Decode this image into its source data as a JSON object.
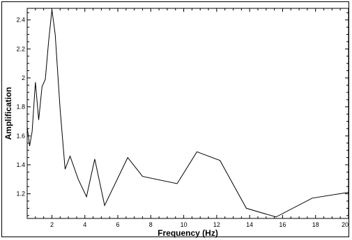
{
  "chart_data": {
    "type": "line",
    "xlabel": "Frequency (Hz)",
    "ylabel": "Amplification",
    "xlim": [
      0.5,
      20
    ],
    "ylim": [
      1.03,
      2.48
    ],
    "xticks": [
      2,
      4,
      6,
      8,
      10,
      12,
      14,
      16,
      18,
      20
    ],
    "xtick_labels": [
      "2",
      "4",
      "6",
      "8",
      "10",
      "12",
      "14",
      "16",
      "18",
      "20"
    ],
    "yticks": [
      1.2,
      1.4,
      1.6,
      1.8,
      2.0,
      2.2,
      2.4
    ],
    "ytick_labels": [
      "1.2",
      "1.4",
      "1.6",
      "1.8",
      "2",
      "2.2",
      "2.4"
    ],
    "grid": false,
    "legend": "none",
    "line_color": "#000000",
    "series": [
      {
        "x": [
          0.5,
          0.65,
          0.8,
          1.0,
          1.2,
          1.4,
          1.6,
          1.8,
          2.0,
          2.2,
          2.5,
          2.8,
          3.1,
          3.6,
          4.1,
          4.6,
          5.2,
          6.6,
          7.5,
          9.6,
          10.8,
          12.2,
          13.8,
          15.6,
          17.8,
          20.0
        ],
        "y": [
          1.66,
          1.53,
          1.63,
          1.97,
          1.71,
          1.94,
          1.99,
          2.25,
          2.47,
          2.3,
          1.78,
          1.37,
          1.46,
          1.3,
          1.18,
          1.44,
          1.12,
          1.45,
          1.32,
          1.27,
          1.49,
          1.43,
          1.1,
          1.04,
          1.17,
          1.21
        ]
      }
    ]
  }
}
